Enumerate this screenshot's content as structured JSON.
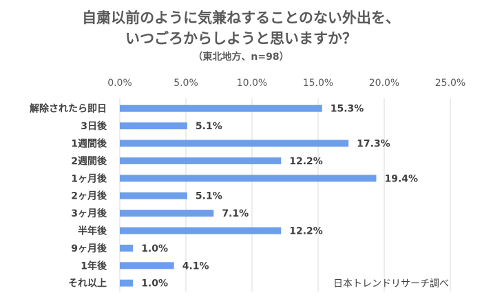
{
  "chart_data": {
    "type": "bar",
    "orientation": "horizontal",
    "title": "自粛以前のように気兼ねすることのない外出を、いつごろからしようと思いますか？",
    "title_line1": "自粛以前のように気兼ねすることのない外出を、",
    "title_line2": "いつごろからしようと思いますか？",
    "subtitle": "（東北地方、n=98）",
    "categories": [
      "解除されたら即日",
      "3日後",
      "1週間後",
      "2週間後",
      "1ヶ月後",
      "2ヶ月後",
      "3ヶ月後",
      "半年後",
      "9ヶ月後",
      "1年後",
      "それ以上"
    ],
    "values": [
      15.3,
      5.1,
      17.3,
      12.2,
      19.4,
      5.1,
      7.1,
      12.2,
      1.0,
      4.1,
      1.0
    ],
    "value_labels": [
      "15.3%",
      "5.1%",
      "17.3%",
      "12.2%",
      "19.4%",
      "5.1%",
      "7.1%",
      "12.2%",
      "1.0%",
      "4.1%",
      "1.0%"
    ],
    "x_ticks": [
      0,
      5,
      10,
      15,
      20,
      25
    ],
    "x_tick_labels": [
      "0.0%",
      "5.0%",
      "10.0%",
      "15.0%",
      "20.0%",
      "25.0%"
    ],
    "xlim": [
      0,
      25
    ],
    "axis_position": "top",
    "grid": true,
    "bar_color": "#6d9eeb",
    "grid_color": "#d9d9d9"
  },
  "source_note": "日本トレンドリサーチ調べ"
}
